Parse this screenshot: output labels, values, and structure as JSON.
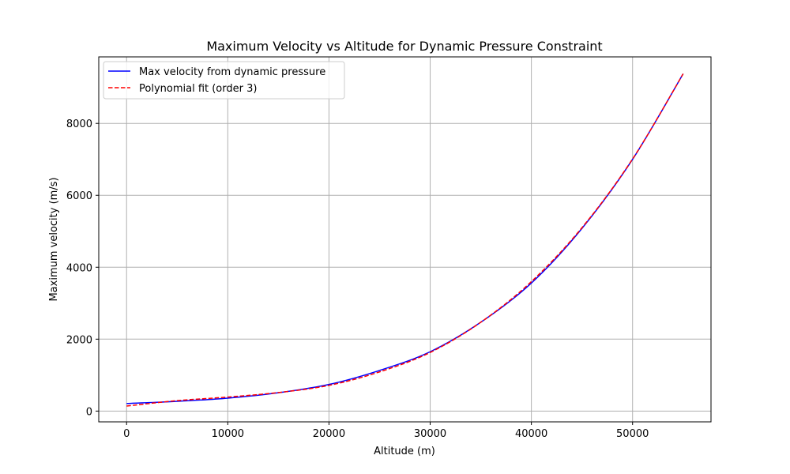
{
  "chart_data": {
    "type": "line",
    "title": "Maximum Velocity vs Altitude for Dynamic Pressure Constraint",
    "xlabel": "Altitude (m)",
    "ylabel": "Maximum velocity (m/s)",
    "xlim": [
      -2750,
      57750
    ],
    "ylim": [
      -300,
      9850
    ],
    "xticks": [
      0,
      10000,
      20000,
      30000,
      40000,
      50000
    ],
    "xtick_labels": [
      "0",
      "10000",
      "20000",
      "30000",
      "40000",
      "50000"
    ],
    "yticks": [
      0,
      2000,
      4000,
      6000,
      8000
    ],
    "ytick_labels": [
      "0",
      "2000",
      "4000",
      "6000",
      "8000"
    ],
    "grid": true,
    "legend_position": "top-left",
    "series": [
      {
        "name": "Max velocity from dynamic pressure",
        "color": "#0000ff",
        "linestyle": "solid",
        "x": [
          0,
          5000,
          10000,
          15000,
          20000,
          25000,
          30000,
          35000,
          40000,
          45000,
          50000,
          55000
        ],
        "y": [
          210,
          270,
          360,
          510,
          740,
          1130,
          1650,
          2470,
          3560,
          5080,
          7000,
          9380
        ]
      },
      {
        "name": "Polynomial fit (order 3)",
        "color": "#ff0000",
        "linestyle": "dashed",
        "x": [
          0,
          5000,
          10000,
          15000,
          20000,
          25000,
          30000,
          35000,
          40000,
          45000,
          50000,
          55000
        ],
        "y": [
          140,
          290,
          390,
          515,
          715,
          1090,
          1630,
          2470,
          3600,
          5100,
          7010,
          9380
        ]
      }
    ]
  }
}
